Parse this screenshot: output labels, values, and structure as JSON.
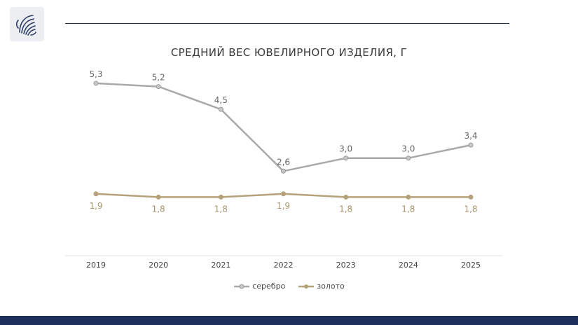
{
  "header": {
    "logo_icon": "medusa-head-icon"
  },
  "chart_data": {
    "type": "line",
    "title": "СРЕДНИЙ ВЕС ЮВЕЛИРНОГО ИЗДЕЛИЯ, Г",
    "categories": [
      "2019",
      "2020",
      "2021",
      "2022",
      "2023",
      "2024",
      "2025"
    ],
    "series": [
      {
        "name": "серебро",
        "color": "#a9a9a9",
        "values": [
          5.3,
          5.2,
          4.5,
          2.6,
          3.0,
          3.0,
          3.4
        ],
        "labels": [
          "5,3",
          "5,2",
          "4,5",
          "2,6",
          "3,0",
          "3,0",
          "3,4"
        ],
        "label_position": "above"
      },
      {
        "name": "золото",
        "color": "#b5a27b",
        "values": [
          1.9,
          1.8,
          1.8,
          1.9,
          1.8,
          1.8,
          1.8
        ],
        "labels": [
          "1,9",
          "1,8",
          "1,8",
          "1,9",
          "1,8",
          "1,8",
          "1,8"
        ],
        "label_position": "below"
      }
    ],
    "ylim": [
      0,
      7
    ],
    "grid": false,
    "legend": "bottom"
  }
}
